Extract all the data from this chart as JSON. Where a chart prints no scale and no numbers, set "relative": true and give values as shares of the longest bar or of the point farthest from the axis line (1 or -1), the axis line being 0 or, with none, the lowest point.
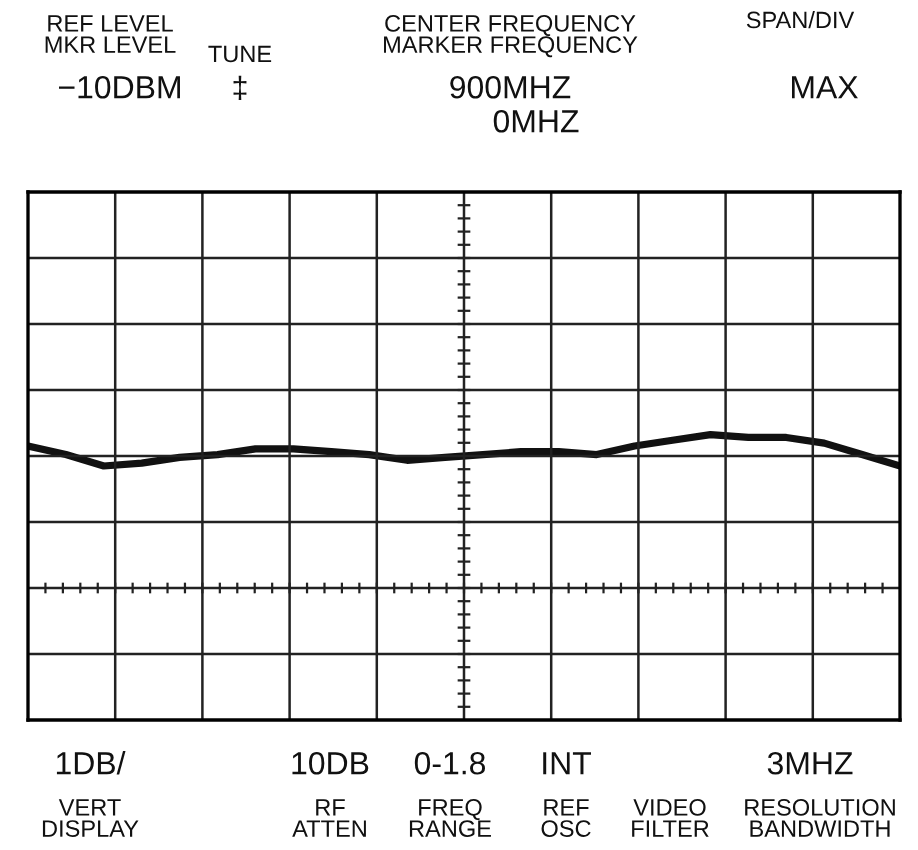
{
  "chart_data": {
    "type": "line",
    "relative": true,
    "grid": true,
    "categories": [
      null,
      null,
      null,
      null,
      null,
      null,
      null,
      null,
      null,
      null,
      null,
      null,
      null,
      null,
      null,
      null,
      null,
      null,
      null,
      null,
      null,
      null,
      null,
      null
    ],
    "series": [
      {
        "color": "#111111",
        "values": [
          0.96,
          0.93,
          0.89,
          0.9,
          0.92,
          0.93,
          0.95,
          0.95,
          0.94,
          0.93,
          0.91,
          0.92,
          0.93,
          0.94,
          0.94,
          0.93,
          0.96,
          0.98,
          1.0,
          0.99,
          0.99,
          0.97,
          0.93,
          0.89
        ]
      }
    ],
    "annotations": [
      "REF LEVEL\nMKR LEVEL",
      "TUNE",
      "CENTER FREQUENCY\nMARKER FREQUENCY",
      "SPAN/DIV",
      "−10DBM",
      "‡",
      "900MHZ",
      "0MHZ",
      "MAX",
      "1DB/",
      "10DB",
      "0-1.8",
      "INT",
      "3MHZ",
      "VERT\nDISPLAY",
      "RF\nATTEN",
      "FREQ\nRANGE",
      "REF\nOSC",
      "VIDEO\nFILTER",
      "RESOLUTION\nBANDWIDTH"
    ]
  }
}
